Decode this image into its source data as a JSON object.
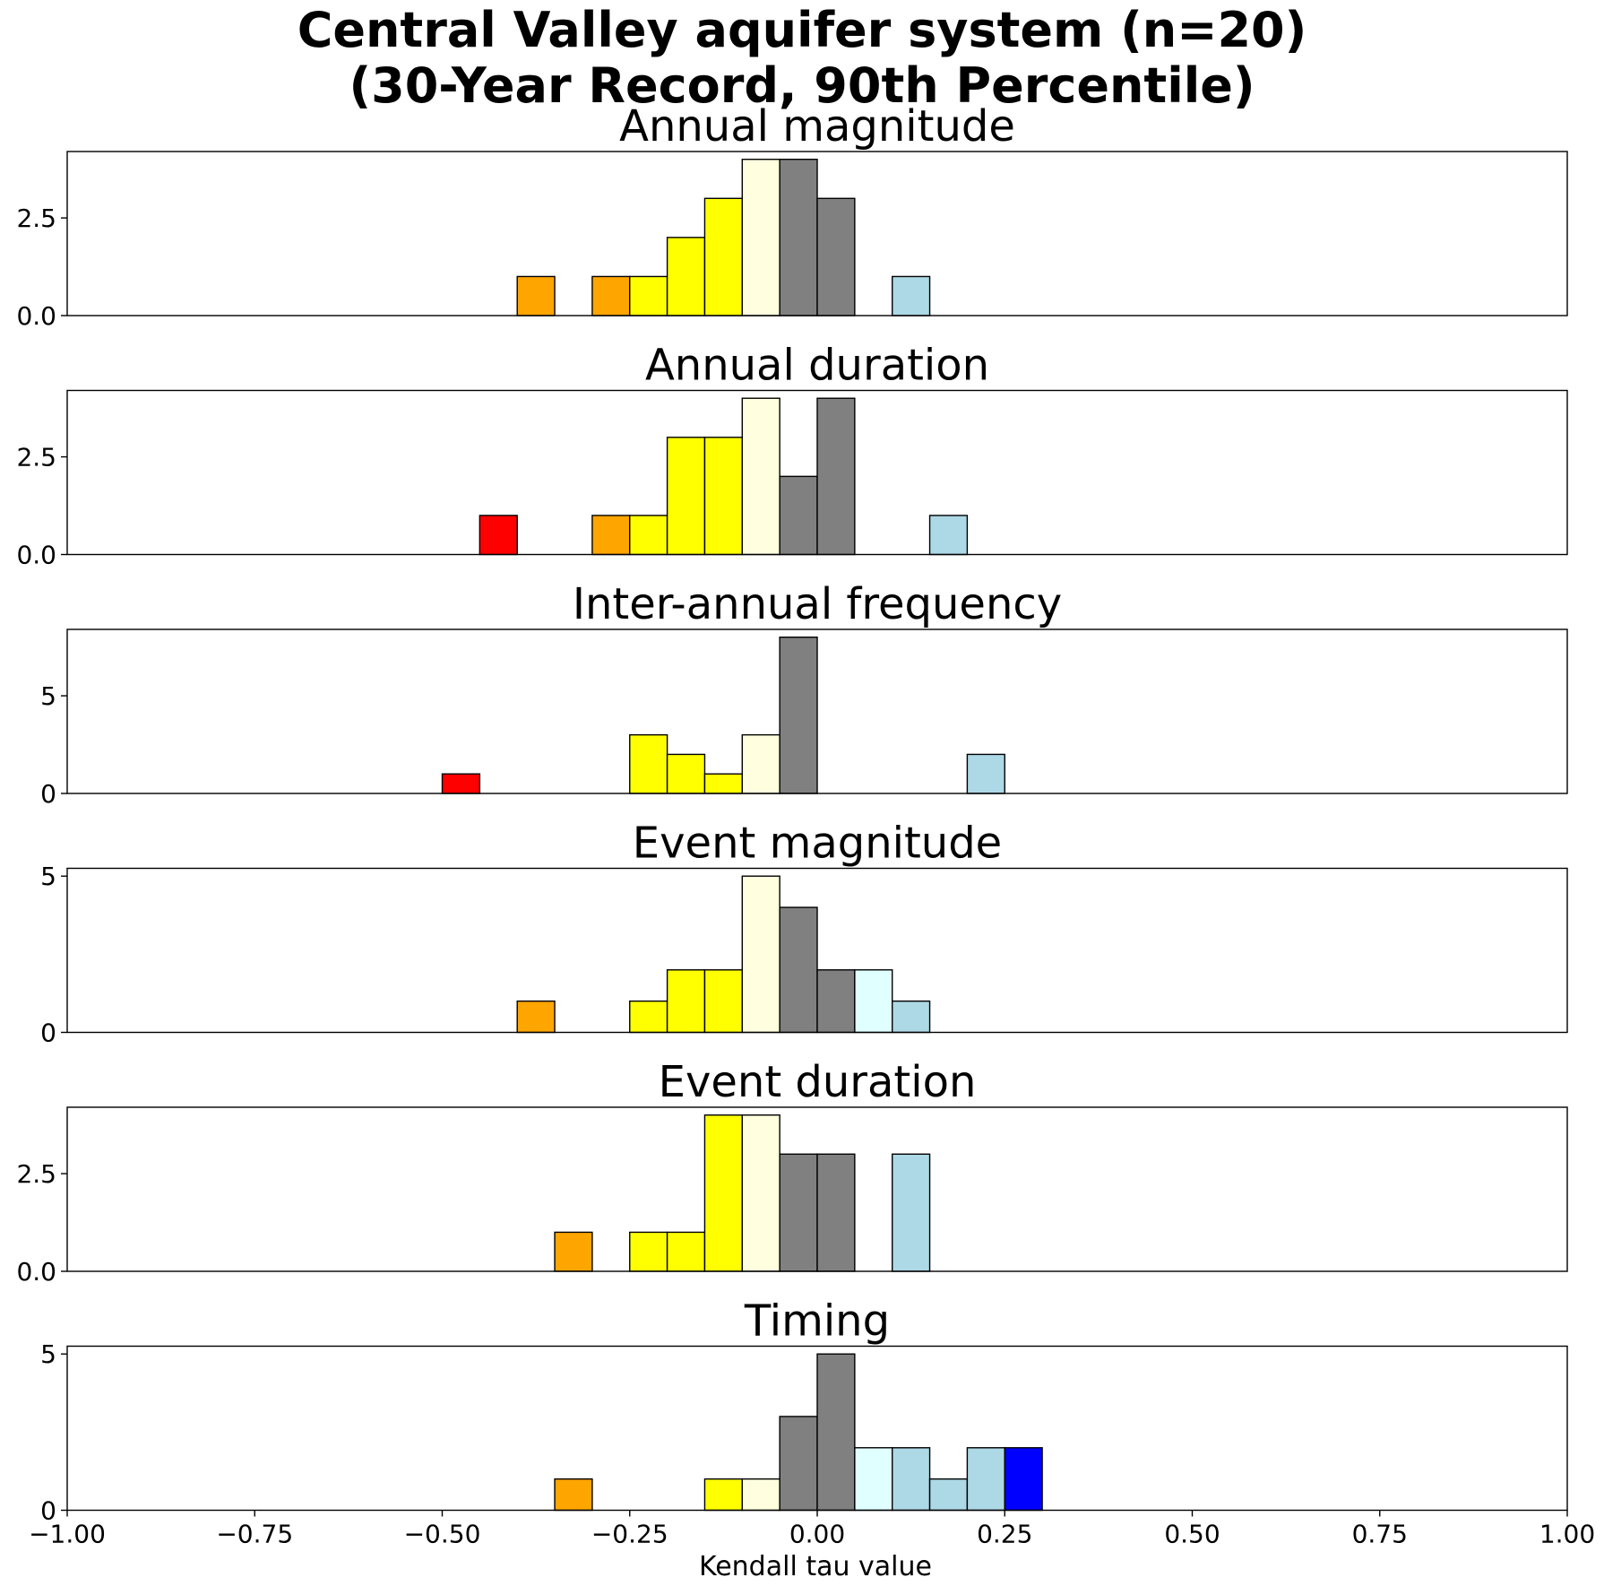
{
  "chart_data": {
    "type": "bar",
    "title": [
      "Central Valley aquifer system (n=20)",
      "(30-Year Record, 90th Percentile)"
    ],
    "xlabel": "Kendall tau value",
    "xlim": [
      -1.0,
      1.0
    ],
    "xticks": [
      "−1.00",
      "−0.75",
      "−0.50",
      "−0.25",
      "0.00",
      "0.25",
      "0.50",
      "0.75",
      "1.00"
    ],
    "bin_width": 0.05,
    "panels": [
      {
        "title": "Annual magnitude",
        "ylim": [
          0,
          4.2
        ],
        "yticks": [
          {
            "value": 0,
            "label": "0.0"
          },
          {
            "value": 2.5,
            "label": "2.5"
          }
        ],
        "bins": [
          {
            "x0": -0.4,
            "value": 1,
            "color": "#FFA500"
          },
          {
            "x0": -0.3,
            "value": 1,
            "color": "#FFA500"
          },
          {
            "x0": -0.25,
            "value": 1,
            "color": "#FFFF00"
          },
          {
            "x0": -0.2,
            "value": 2,
            "color": "#FFFF00"
          },
          {
            "x0": -0.15,
            "value": 3,
            "color": "#FFFF00"
          },
          {
            "x0": -0.1,
            "value": 4,
            "color": "#FFFFE0"
          },
          {
            "x0": -0.05,
            "value": 4,
            "color": "#808080"
          },
          {
            "x0": 0.0,
            "value": 3,
            "color": "#808080"
          },
          {
            "x0": 0.1,
            "value": 1,
            "color": "#ADD8E6"
          }
        ]
      },
      {
        "title": "Annual duration",
        "ylim": [
          0,
          4.2
        ],
        "yticks": [
          {
            "value": 0,
            "label": "0.0"
          },
          {
            "value": 2.5,
            "label": "2.5"
          }
        ],
        "bins": [
          {
            "x0": -0.45,
            "value": 1,
            "color": "#FF0000"
          },
          {
            "x0": -0.3,
            "value": 1,
            "color": "#FFA500"
          },
          {
            "x0": -0.25,
            "value": 1,
            "color": "#FFFF00"
          },
          {
            "x0": -0.2,
            "value": 3,
            "color": "#FFFF00"
          },
          {
            "x0": -0.15,
            "value": 3,
            "color": "#FFFF00"
          },
          {
            "x0": -0.1,
            "value": 4,
            "color": "#FFFFE0"
          },
          {
            "x0": -0.05,
            "value": 2,
            "color": "#808080"
          },
          {
            "x0": 0.0,
            "value": 4,
            "color": "#808080"
          },
          {
            "x0": 0.15,
            "value": 1,
            "color": "#ADD8E6"
          }
        ]
      },
      {
        "title": "Inter-annual frequency",
        "ylim": [
          0,
          8.4
        ],
        "yticks": [
          {
            "value": 0,
            "label": "0"
          },
          {
            "value": 5,
            "label": "5"
          }
        ],
        "bins": [
          {
            "x0": -0.5,
            "value": 1,
            "color": "#FF0000"
          },
          {
            "x0": -0.25,
            "value": 3,
            "color": "#FFFF00"
          },
          {
            "x0": -0.2,
            "value": 2,
            "color": "#FFFF00"
          },
          {
            "x0": -0.15,
            "value": 1,
            "color": "#FFFF00"
          },
          {
            "x0": -0.1,
            "value": 3,
            "color": "#FFFFE0"
          },
          {
            "x0": -0.05,
            "value": 8,
            "color": "#808080"
          },
          {
            "x0": 0.2,
            "value": 2,
            "color": "#ADD8E6"
          }
        ]
      },
      {
        "title": "Event magnitude",
        "ylim": [
          0,
          5.25
        ],
        "yticks": [
          {
            "value": 0,
            "label": "0"
          },
          {
            "value": 5,
            "label": "5"
          }
        ],
        "bins": [
          {
            "x0": -0.4,
            "value": 1,
            "color": "#FFA500"
          },
          {
            "x0": -0.25,
            "value": 1,
            "color": "#FFFF00"
          },
          {
            "x0": -0.2,
            "value": 2,
            "color": "#FFFF00"
          },
          {
            "x0": -0.15,
            "value": 2,
            "color": "#FFFF00"
          },
          {
            "x0": -0.1,
            "value": 5,
            "color": "#FFFFE0"
          },
          {
            "x0": -0.05,
            "value": 4,
            "color": "#808080"
          },
          {
            "x0": 0.0,
            "value": 2,
            "color": "#808080"
          },
          {
            "x0": 0.05,
            "value": 2,
            "color": "#E0FFFF"
          },
          {
            "x0": 0.1,
            "value": 1,
            "color": "#ADD8E6"
          }
        ]
      },
      {
        "title": "Event duration",
        "ylim": [
          0,
          4.2
        ],
        "yticks": [
          {
            "value": 0,
            "label": "0.0"
          },
          {
            "value": 2.5,
            "label": "2.5"
          }
        ],
        "bins": [
          {
            "x0": -0.35,
            "value": 1,
            "color": "#FFA500"
          },
          {
            "x0": -0.25,
            "value": 1,
            "color": "#FFFF00"
          },
          {
            "x0": -0.2,
            "value": 1,
            "color": "#FFFF00"
          },
          {
            "x0": -0.15,
            "value": 4,
            "color": "#FFFF00"
          },
          {
            "x0": -0.1,
            "value": 4,
            "color": "#FFFFE0"
          },
          {
            "x0": -0.05,
            "value": 3,
            "color": "#808080"
          },
          {
            "x0": 0.0,
            "value": 3,
            "color": "#808080"
          },
          {
            "x0": 0.1,
            "value": 3,
            "color": "#ADD8E6"
          }
        ]
      },
      {
        "title": "Timing",
        "ylim": [
          0,
          5.25
        ],
        "yticks": [
          {
            "value": 0,
            "label": "0"
          },
          {
            "value": 5,
            "label": "5"
          }
        ],
        "bins": [
          {
            "x0": -0.35,
            "value": 1,
            "color": "#FFA500"
          },
          {
            "x0": -0.15,
            "value": 1,
            "color": "#FFFF00"
          },
          {
            "x0": -0.1,
            "value": 1,
            "color": "#FFFFE0"
          },
          {
            "x0": -0.05,
            "value": 3,
            "color": "#808080"
          },
          {
            "x0": 0.0,
            "value": 5,
            "color": "#808080"
          },
          {
            "x0": 0.05,
            "value": 2,
            "color": "#E0FFFF"
          },
          {
            "x0": 0.1,
            "value": 2,
            "color": "#ADD8E6"
          },
          {
            "x0": 0.15,
            "value": 1,
            "color": "#ADD8E6"
          },
          {
            "x0": 0.2,
            "value": 2,
            "color": "#ADD8E6"
          },
          {
            "x0": 0.25,
            "value": 2,
            "color": "#0000FF"
          }
        ]
      }
    ]
  }
}
